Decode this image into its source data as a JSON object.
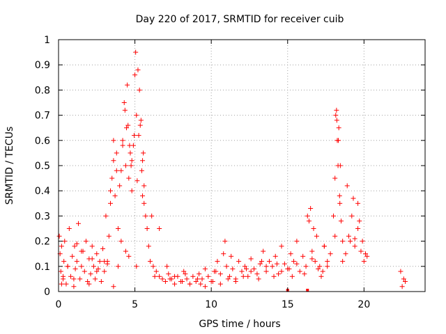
{
  "chart_data": {
    "type": "scatter",
    "title": "Day 220 of 2017, SRMTID for receiver cuib",
    "xlabel": "GPS time / hours",
    "ylabel": "SRMTID / TECUs",
    "xlim": [
      0,
      24
    ],
    "ylim": [
      0,
      1
    ],
    "xticks": [
      "0",
      "5",
      "10",
      "15",
      "20"
    ],
    "xtick_values": [
      0,
      5,
      10,
      15,
      20
    ],
    "yticks": [
      "0",
      "0.1",
      "0.2",
      "0.3",
      "0.4",
      "0.5",
      "0.6",
      "0.7",
      "0.8",
      "0.9",
      "1"
    ],
    "ytick_values": [
      0,
      0.1,
      0.2,
      0.3,
      0.4,
      0.5,
      0.6,
      0.7,
      0.8,
      0.9,
      1
    ],
    "grid": true,
    "marker": "+",
    "color": "#ff0000",
    "series": [
      {
        "name": "SRMTID",
        "x": [
          0.05,
          0.1,
          0.15,
          0.2,
          0.3,
          0.35,
          0.4,
          0.5,
          0.6,
          0.7,
          0.8,
          0.9,
          1.0,
          1.05,
          1.1,
          1.2,
          1.3,
          1.4,
          1.5,
          1.6,
          1.7,
          1.8,
          1.9,
          2.0,
          2.1,
          2.2,
          2.3,
          2.4,
          2.5,
          2.6,
          2.7,
          2.8,
          2.9,
          3.0,
          3.1,
          3.2,
          3.3,
          3.4,
          3.5,
          3.6,
          3.7,
          3.8,
          3.9,
          4.0,
          4.1,
          4.2,
          4.3,
          4.4,
          4.5,
          4.55,
          4.6,
          4.7,
          4.8,
          4.9,
          5.0,
          5.05,
          5.1,
          5.2,
          5.25,
          5.3,
          5.4,
          5.5,
          5.6,
          5.7,
          5.8,
          5.9,
          6.0,
          6.2,
          6.4,
          6.6,
          6.8,
          7.0,
          7.2,
          7.4,
          7.6,
          7.8,
          8.0,
          8.2,
          8.4,
          8.6,
          8.8,
          9.0,
          9.2,
          9.4,
          9.6,
          9.8,
          10.0,
          10.2,
          10.4,
          10.6,
          10.8,
          11.0,
          11.2,
          11.4,
          11.6,
          11.8,
          12.0,
          12.2,
          12.4,
          12.6,
          12.8,
          13.0,
          13.2,
          13.4,
          13.6,
          13.8,
          14.0,
          14.2,
          14.4,
          14.6,
          14.8,
          15.0,
          15.2,
          15.4,
          15.6,
          15.8,
          16.0,
          16.2,
          16.4,
          16.6,
          16.8,
          17.0,
          17.2,
          17.4,
          17.6,
          17.8,
          18.0,
          18.1,
          18.2,
          18.25,
          18.3,
          18.4,
          18.5,
          18.6,
          18.8,
          19.0,
          19.2,
          19.4,
          19.6,
          19.8,
          20.0,
          22.4,
          22.5,
          22.6,
          22.7,
          0.2,
          0.6,
          1.0,
          1.5,
          2.0,
          2.5,
          3.0,
          3.6,
          4.1,
          4.6,
          5.1,
          5.6,
          6.1,
          6.6,
          7.1,
          7.6,
          8.1,
          8.6,
          9.1,
          9.6,
          10.1,
          10.6,
          11.1,
          11.6,
          12.1,
          12.6,
          13.1,
          13.6,
          14.1,
          14.6,
          15.1,
          15.6,
          16.1,
          16.6,
          17.1,
          17.6,
          18.1,
          18.6,
          19.1,
          19.6,
          20.1,
          0.3,
          1.2,
          2.2,
          3.2,
          3.9,
          4.4,
          4.8,
          5.15,
          5.35,
          5.5,
          6.3,
          7.3,
          8.3,
          9.3,
          10.3,
          10.9,
          11.3,
          12.3,
          13.3,
          14.3,
          15.3,
          16.3,
          16.5,
          16.7,
          17.3,
          18.35,
          18.45,
          18.9,
          19.3,
          19.7,
          19.9,
          20.2,
          3.4,
          3.6,
          3.8,
          4.2,
          4.35,
          4.45,
          4.65,
          4.75,
          4.95,
          5.45,
          5.55,
          18.15,
          18.22,
          18.32,
          18.42,
          17.4,
          16.9,
          19.4
        ],
        "y": [
          0.22,
          0.15,
          0.08,
          0.18,
          0.05,
          0.12,
          0.2,
          0.03,
          0.1,
          0.25,
          0.06,
          0.14,
          0.02,
          0.18,
          0.09,
          0.12,
          0.27,
          0.05,
          0.1,
          0.16,
          0.08,
          0.2,
          0.04,
          0.13,
          0.07,
          0.18,
          0.1,
          0.05,
          0.15,
          0.09,
          0.12,
          0.04,
          0.17,
          0.08,
          0.3,
          0.12,
          0.22,
          0.35,
          0.45,
          0.6,
          0.38,
          0.55,
          0.25,
          0.42,
          0.48,
          0.6,
          0.75,
          0.5,
          0.82,
          0.66,
          0.45,
          0.55,
          0.4,
          0.58,
          0.86,
          0.95,
          0.7,
          0.88,
          0.62,
          0.8,
          0.68,
          0.52,
          0.42,
          0.3,
          0.25,
          0.18,
          0.12,
          0.1,
          0.08,
          0.06,
          0.05,
          0.04,
          0.07,
          0.05,
          0.03,
          0.06,
          0.04,
          0.08,
          0.05,
          0.03,
          0.06,
          0.04,
          0.07,
          0.05,
          0.09,
          0.06,
          0.04,
          0.08,
          0.12,
          0.07,
          0.15,
          0.1,
          0.06,
          0.09,
          0.05,
          0.12,
          0.08,
          0.1,
          0.06,
          0.13,
          0.09,
          0.07,
          0.11,
          0.16,
          0.08,
          0.12,
          0.1,
          0.14,
          0.07,
          0.18,
          0.11,
          0.09,
          0.15,
          0.12,
          0.2,
          0.08,
          0.14,
          0.1,
          0.28,
          0.16,
          0.12,
          0.09,
          0.06,
          0.18,
          0.1,
          0.15,
          0.3,
          0.45,
          0.72,
          0.6,
          0.5,
          0.38,
          0.28,
          0.2,
          0.15,
          0.22,
          0.3,
          0.18,
          0.25,
          0.16,
          0.12,
          0.08,
          0.02,
          0.05,
          0.04,
          0.03,
          0.1,
          0.05,
          0.16,
          0.03,
          0.08,
          0.12,
          0.02,
          0.2,
          0.14,
          0.1,
          0.35,
          0.3,
          0.25,
          0.1,
          0.06,
          0.04,
          0.03,
          0.05,
          0.02,
          0.04,
          0.03,
          0.05,
          0.04,
          0.06,
          0.08,
          0.05,
          0.1,
          0.06,
          0.08,
          0.09,
          0.11,
          0.07,
          0.13,
          0.1,
          0.12,
          0.22,
          0.12,
          0.2,
          0.35,
          0.15,
          0.06,
          0.19,
          0.13,
          0.11,
          0.1,
          0.16,
          0.52,
          0.44,
          0.66,
          0.38,
          0.06,
          0.05,
          0.07,
          0.03,
          0.08,
          0.2,
          0.14,
          0.09,
          0.12,
          0.11,
          0.06,
          0.3,
          0.33,
          0.25,
          0.08,
          0.65,
          0.5,
          0.42,
          0.37,
          0.28,
          0.2,
          0.14,
          0.4,
          0.52,
          0.48,
          0.58,
          0.72,
          0.65,
          0.58,
          0.5,
          0.62,
          0.48,
          0.55,
          0.7,
          0.68,
          0.6,
          0.35,
          0.18,
          0.22,
          0.21
        ],
        "baseline_x": [
          15.0,
          16.3
        ]
      }
    ]
  }
}
